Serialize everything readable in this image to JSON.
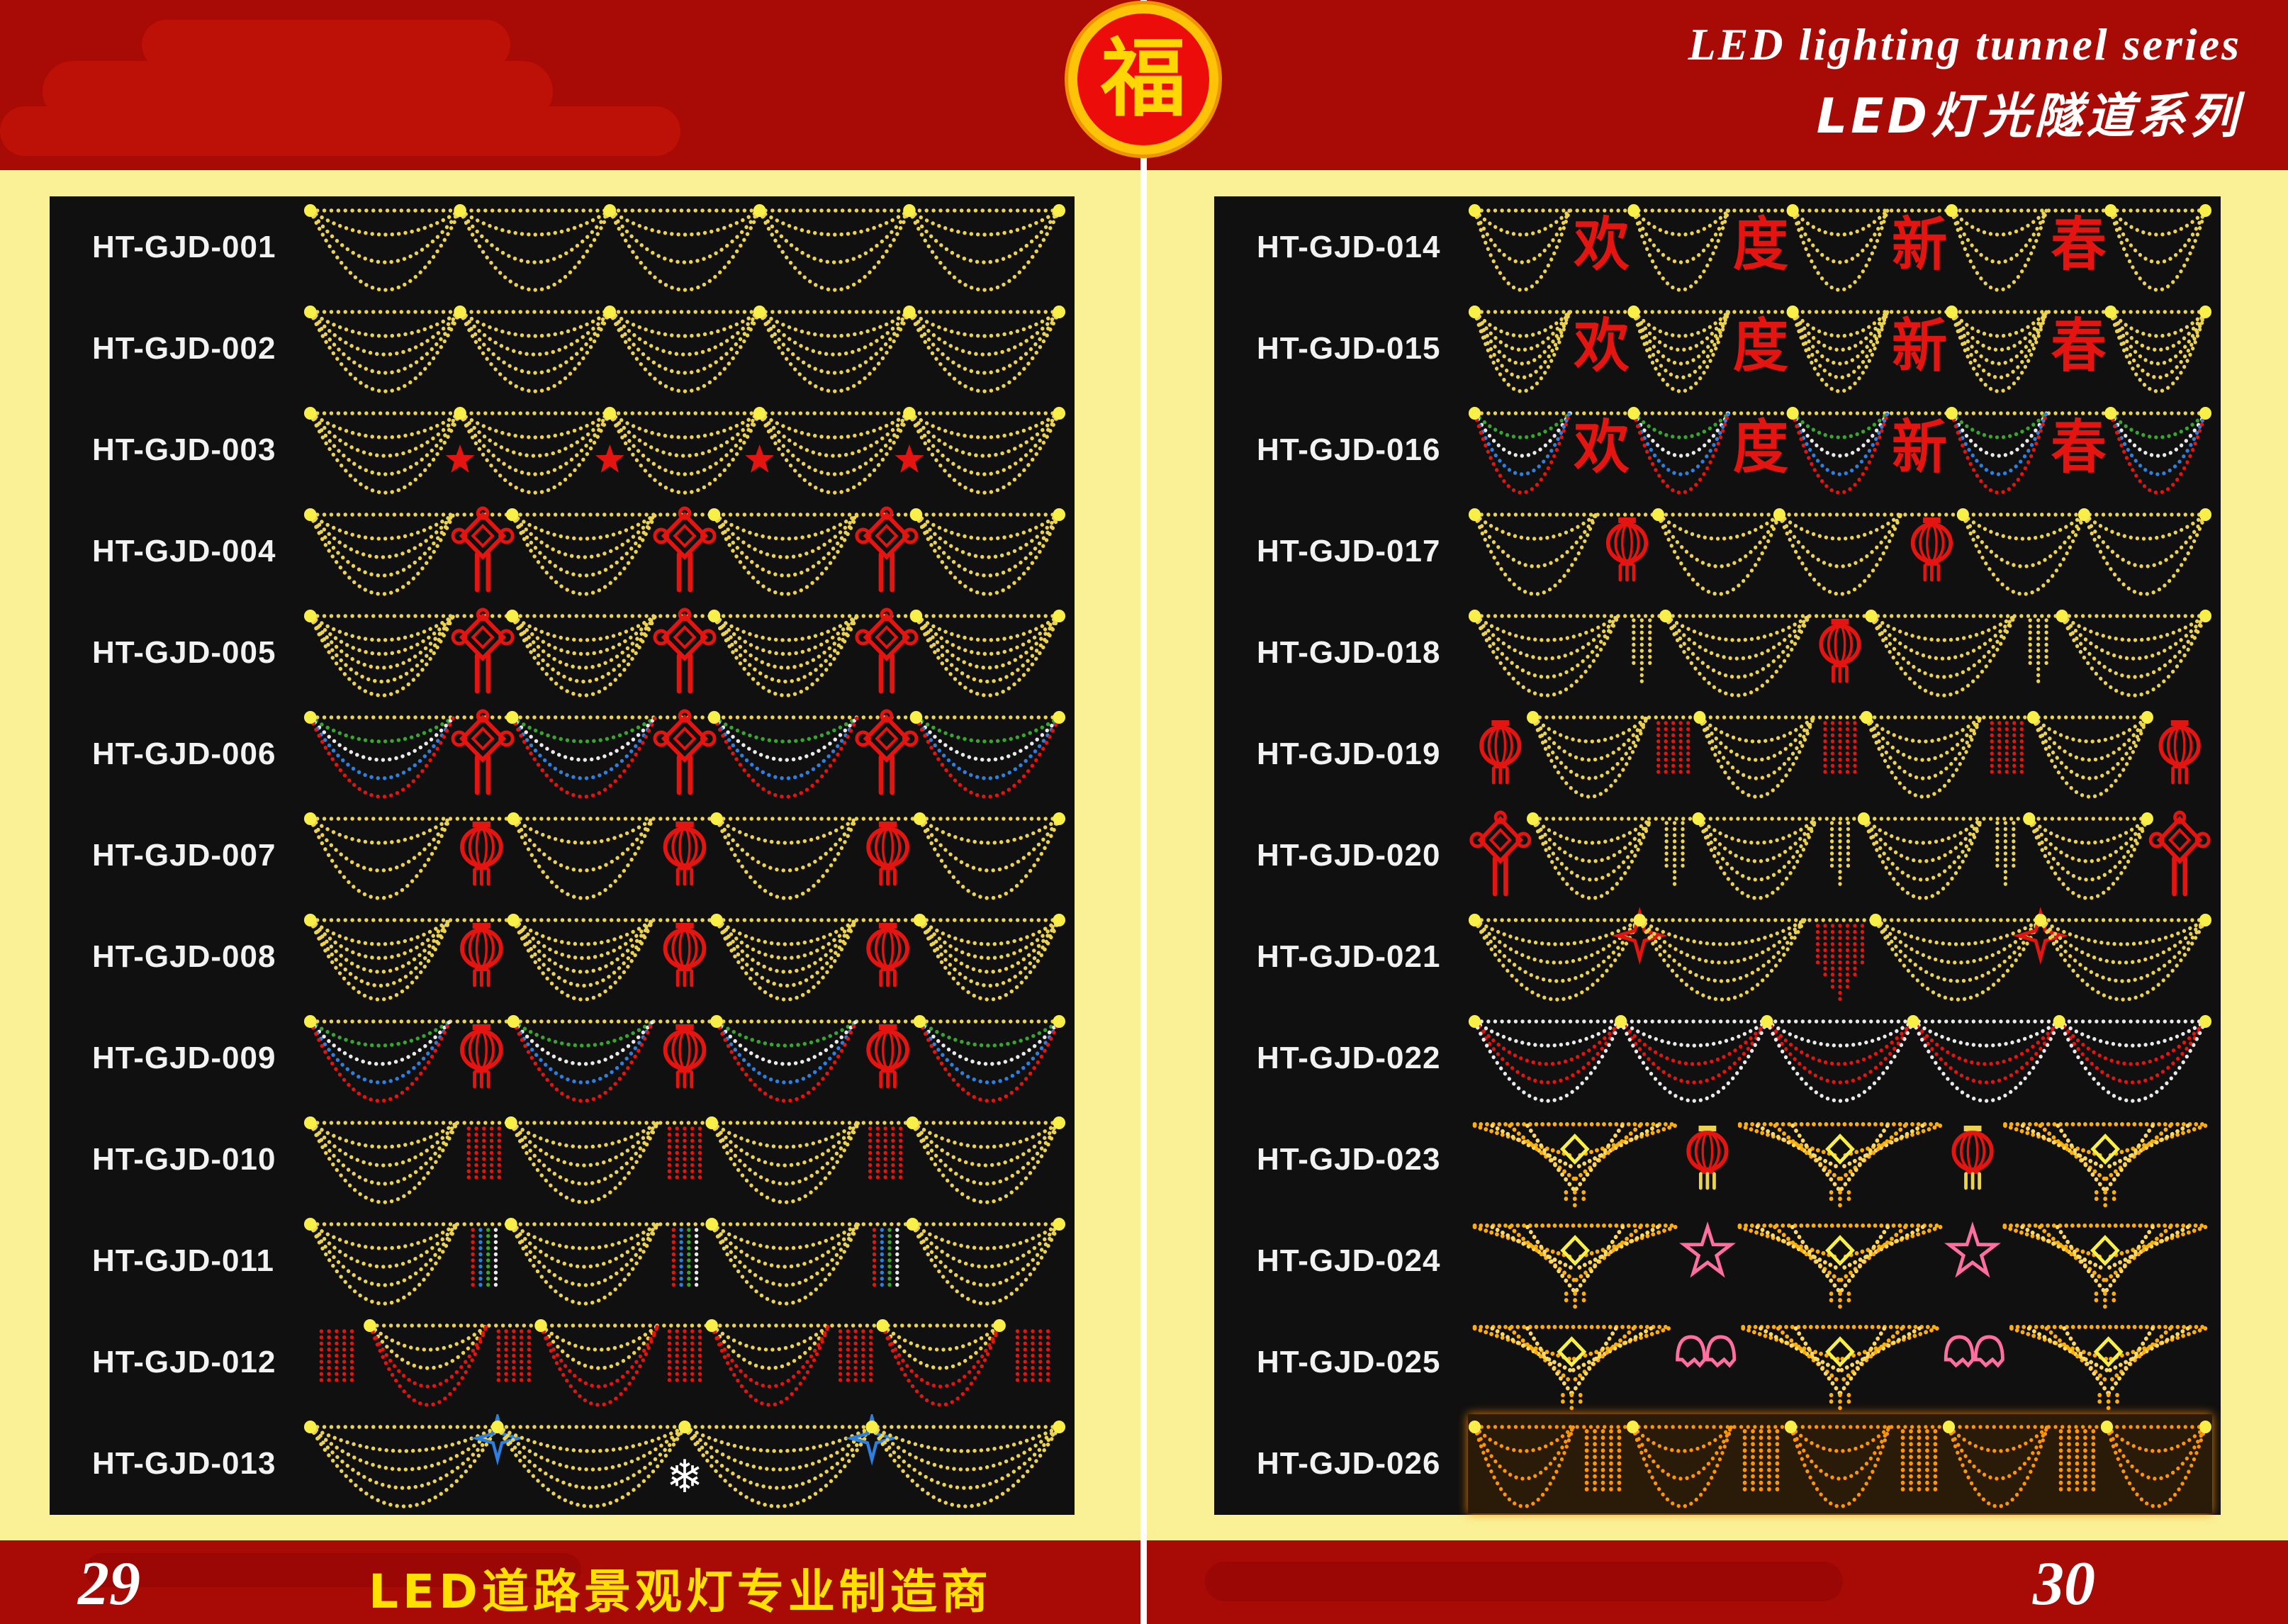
{
  "header": {
    "title_en": "LED lighting tunnel series",
    "title_zh": "LED灯光隧道系列",
    "logo_char": "福"
  },
  "footer": {
    "left_page": "29",
    "right_page": "30",
    "slogan": "LED道路景观灯专业制造商"
  },
  "colors": {
    "yellow": "#ecd34f",
    "knob": "#f9ef49",
    "red": "#e41510",
    "green": "#38a52f",
    "white": "#e9e9e9",
    "blue": "#2d7fe0",
    "pink": "#ff6f9f",
    "orange": "#ff9500",
    "gold": "#ffae06",
    "goldLight": "#ffd95e",
    "headerBand": "#a80b06",
    "pageBackground": "#faf096",
    "panelBackground": "#101010"
  },
  "panels": {
    "left": {
      "products": [
        {
          "code": "HT-GJD-001",
          "sc": 5,
          "arcs": 3,
          "col": [
            "yellow"
          ]
        },
        {
          "code": "HT-GJD-002",
          "sc": 5,
          "arcs": 4,
          "col": [
            "yellow"
          ]
        },
        {
          "code": "HT-GJD-003",
          "sc": 5,
          "arcs": 4,
          "col": [
            "yellow"
          ],
          "seps": [
            "redstar"
          ]
        },
        {
          "code": "HT-GJD-004",
          "sc": 4,
          "arcs": 4,
          "col": [
            "yellow"
          ],
          "seps": [
            "knot"
          ]
        },
        {
          "code": "HT-GJD-005",
          "sc": 4,
          "arcs": 5,
          "col": [
            "yellow"
          ],
          "seps": [
            "knot"
          ]
        },
        {
          "code": "HT-GJD-006",
          "sc": 4,
          "arcs": 4,
          "col": [
            "green",
            "white",
            "blue",
            "red"
          ],
          "top": "yellow",
          "seps": [
            "knot"
          ]
        },
        {
          "code": "HT-GJD-007",
          "sc": 4,
          "arcs": 3,
          "col": [
            "yellow"
          ],
          "seps": [
            "lantern"
          ]
        },
        {
          "code": "HT-GJD-008",
          "sc": 4,
          "arcs": 5,
          "col": [
            "yellow"
          ],
          "seps": [
            "lantern"
          ]
        },
        {
          "code": "HT-GJD-009",
          "sc": 4,
          "arcs": 4,
          "col": [
            "green",
            "white",
            "blue",
            "red"
          ],
          "top": "yellow",
          "seps": [
            "lantern"
          ]
        },
        {
          "code": "HT-GJD-010",
          "sc": 4,
          "arcs": 4,
          "col": [
            "yellow"
          ],
          "seps": [
            "rtassel"
          ]
        },
        {
          "code": "HT-GJD-011",
          "sc": 4,
          "arcs": 4,
          "col": [
            "yellow"
          ],
          "seps": [
            "mtassel"
          ]
        },
        {
          "code": "HT-GJD-012",
          "sc": 4,
          "arcs": 4,
          "col": [
            "yellow",
            "yellow",
            "red",
            "red"
          ],
          "seps": [
            "rtassel"
          ],
          "edgeLeft": "rtassel",
          "edgeRight": "rtassel"
        },
        {
          "code": "HT-GJD-013",
          "sc": 4,
          "arcs": 4,
          "col": [
            "yellow"
          ],
          "seps": [
            "bluestar",
            "snow"
          ]
        }
      ]
    },
    "right": {
      "products": [
        {
          "code": "HT-GJD-014",
          "sc": 5,
          "arcs": 3,
          "col": [
            "yellow"
          ],
          "seps": [
            "char"
          ],
          "chars": "欢度新春"
        },
        {
          "code": "HT-GJD-015",
          "sc": 5,
          "arcs": 5,
          "col": [
            "yellow"
          ],
          "seps": [
            "char"
          ],
          "chars": "欢度新春"
        },
        {
          "code": "HT-GJD-016",
          "sc": 5,
          "arcs": 4,
          "col": [
            "green",
            "white",
            "blue",
            "red"
          ],
          "top": "yellow",
          "seps": [
            "char"
          ],
          "chars": "欢度新春"
        },
        {
          "code": "HT-GJD-017",
          "sc": 5,
          "arcs": 3,
          "col": [
            "yellow"
          ],
          "seps": [
            "lantern",
            "none"
          ]
        },
        {
          "code": "HT-GJD-018",
          "sc": 4,
          "arcs": 4,
          "col": [
            "yellow"
          ],
          "seps": [
            "ytassel",
            "lantern"
          ]
        },
        {
          "code": "HT-GJD-019",
          "sc": 4,
          "arcs": 4,
          "col": [
            "yellow"
          ],
          "seps": [
            "rtassel"
          ],
          "edgeLeft": "lantern",
          "edgeRight": "lantern"
        },
        {
          "code": "HT-GJD-020",
          "sc": 4,
          "arcs": 4,
          "col": [
            "yellow"
          ],
          "seps": [
            "ytassel"
          ],
          "edgeLeft": "knot",
          "edgeRight": "knot"
        },
        {
          "code": "HT-GJD-021",
          "sc": 4,
          "arcs": 4,
          "col": [
            "yellow"
          ],
          "seps": [
            "dstar",
            "rfringe"
          ]
        },
        {
          "code": "HT-GJD-022",
          "sc": 5,
          "arcs": 4,
          "col": [
            "white",
            "red",
            "red",
            "white"
          ],
          "top": "white"
        },
        {
          "code": "HT-GJD-023",
          "t": "wing",
          "units": 3,
          "seps": [
            "lanternY"
          ]
        },
        {
          "code": "HT-GJD-024",
          "t": "wing",
          "units": 3,
          "seps": [
            "pinkstar"
          ]
        },
        {
          "code": "HT-GJD-025",
          "t": "wing",
          "units": 3,
          "seps": [
            "bell"
          ]
        },
        {
          "code": "HT-GJD-026",
          "sc": 5,
          "arcs": 3,
          "col": [
            "orange"
          ],
          "seps": [
            "ofringe"
          ],
          "glow": true
        }
      ]
    }
  }
}
